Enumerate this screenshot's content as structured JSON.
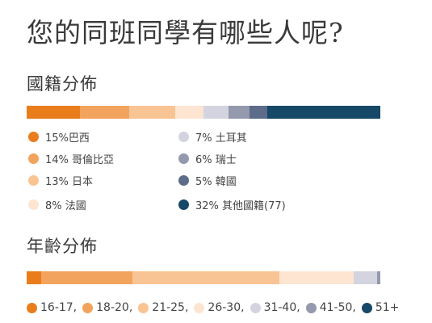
{
  "page_title": "您的同班同學有哪些人呢?",
  "nationality": {
    "title": "國籍分佈",
    "items": [
      {
        "percent": 15,
        "label": "15%巴西",
        "color": "#ea7d1b"
      },
      {
        "percent": 14,
        "label": "14% 哥倫比亞",
        "color": "#f2a45e"
      },
      {
        "percent": 13,
        "label": "13% 日本",
        "color": "#f9c493"
      },
      {
        "percent": 8,
        "label": "8% 法國",
        "color": "#fde5d2"
      },
      {
        "percent": 7,
        "label": "7% 土耳其",
        "color": "#d3d4e0"
      },
      {
        "percent": 6,
        "label": "6% 瑞士",
        "color": "#9599ad"
      },
      {
        "percent": 5,
        "label": "5% 韓國",
        "color": "#5d6c88"
      },
      {
        "percent": 32,
        "label": "32% 其他國籍(77)",
        "color": "#164867"
      }
    ]
  },
  "age": {
    "title": "年齡分佈",
    "items": [
      {
        "percent": 4,
        "label": "16-17,",
        "color": "#ea7d1b"
      },
      {
        "percent": 26,
        "label": "18-20,",
        "color": "#f2a45e"
      },
      {
        "percent": 41.5,
        "label": "21-25,",
        "color": "#f9c493"
      },
      {
        "percent": 21,
        "label": "26-30,",
        "color": "#fde5d2"
      },
      {
        "percent": 6.5,
        "label": "31-40,",
        "color": "#d3d4e0"
      },
      {
        "percent": 1,
        "label": "41-50,",
        "color": "#9599ad"
      },
      {
        "percent": 0,
        "label": "51+",
        "color": "#164867"
      }
    ]
  }
}
